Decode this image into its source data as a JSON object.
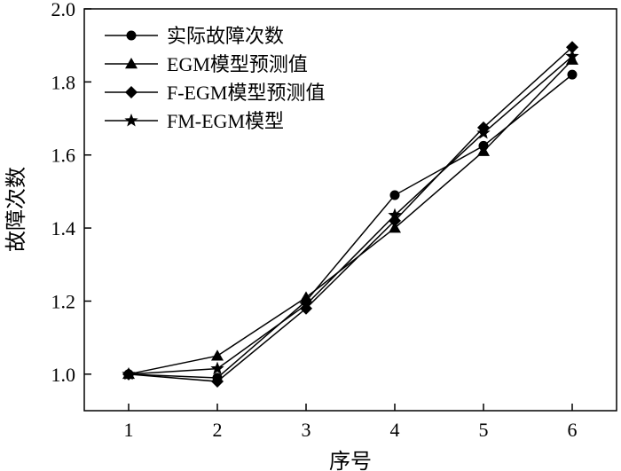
{
  "chart_data": {
    "type": "line",
    "title": "",
    "xlabel": "序号",
    "ylabel": "故障次数",
    "x": [
      1,
      2,
      3,
      4,
      5,
      6
    ],
    "xlim": [
      0.5,
      6.5
    ],
    "ylim": [
      0.9,
      2.0
    ],
    "xticks": [
      "1",
      "2",
      "3",
      "4",
      "5",
      "6"
    ],
    "yticks": [
      "1.0",
      "1.2",
      "1.4",
      "1.6",
      "1.8",
      "2.0"
    ],
    "grid": false,
    "legend_position": "top-left",
    "series": [
      {
        "name": "实际故障次数",
        "marker": "circle",
        "values": [
          1.0,
          0.99,
          1.2,
          1.49,
          1.625,
          1.82
        ]
      },
      {
        "name": "EGM模型预测值",
        "marker": "triangle",
        "values": [
          1.0,
          1.05,
          1.21,
          1.4,
          1.61,
          1.86
        ]
      },
      {
        "name": "F-EGM模型预测值",
        "marker": "diamond",
        "values": [
          1.0,
          0.98,
          1.18,
          1.42,
          1.675,
          1.895
        ]
      },
      {
        "name": "FM-EGM模型",
        "marker": "star",
        "values": [
          1.0,
          1.015,
          1.19,
          1.435,
          1.66,
          1.87
        ]
      }
    ],
    "line_color": "#000000"
  }
}
